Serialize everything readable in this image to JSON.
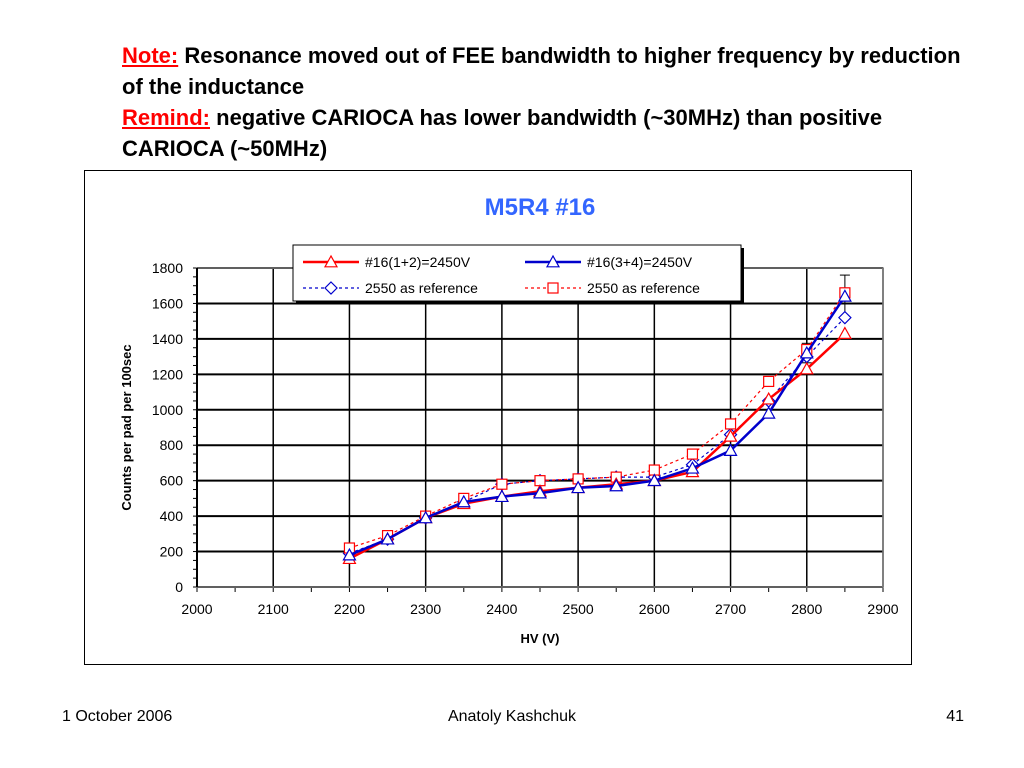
{
  "slide": {
    "note_label": "Note:",
    "note_text": "Resonance moved out of FEE bandwidth to higher frequency by reduction of the inductance",
    "remind_label": "Remind:",
    "remind_text": "negative CARIOCA has lower bandwidth (~30MHz) than positive CARIOCA (~50MHz)",
    "label_color": "#ff0000"
  },
  "footer": {
    "date": "1 October 2006",
    "author": "Anatoly Kashchuk",
    "page": "41"
  },
  "chart_data": {
    "type": "line",
    "title": "M5R4 #16",
    "title_color": "#3366ff",
    "xlabel": "HV (V)",
    "ylabel": "Counts  per pad per 100sec",
    "xlim": [
      2000,
      2900
    ],
    "ylim": [
      0,
      1800
    ],
    "x_ticks": [
      2000,
      2100,
      2200,
      2300,
      2400,
      2500,
      2600,
      2700,
      2800,
      2900
    ],
    "y_ticks": [
      0,
      200,
      400,
      600,
      800,
      1000,
      1200,
      1400,
      1600,
      1800
    ],
    "grid": "major",
    "legend_position": "top-center",
    "series": [
      {
        "name": "#16(1+2)=2450V",
        "color": "#ff0000",
        "line": "solid",
        "marker": "triangle",
        "x": [
          2200,
          2250,
          2300,
          2350,
          2400,
          2450,
          2500,
          2550,
          2600,
          2650,
          2700,
          2750,
          2800,
          2850
        ],
        "y": [
          160,
          270,
          390,
          470,
          510,
          540,
          560,
          580,
          600,
          650,
          850,
          1060,
          1230,
          1430
        ]
      },
      {
        "name": "#16(3+4)=2450V",
        "color": "#0000cc",
        "line": "solid",
        "marker": "triangle",
        "x": [
          2200,
          2250,
          2300,
          2350,
          2400,
          2450,
          2500,
          2550,
          2600,
          2650,
          2700,
          2750,
          2800,
          2850
        ],
        "y": [
          180,
          270,
          390,
          480,
          510,
          530,
          560,
          570,
          600,
          670,
          770,
          980,
          1320,
          1640
        ]
      },
      {
        "name": "2550 as reference",
        "color": "#0000cc",
        "line": "dotted",
        "marker": "diamond",
        "x": [
          2200,
          2250,
          2300,
          2350,
          2400,
          2450,
          2500,
          2550,
          2600,
          2650,
          2700,
          2750,
          2800,
          2850
        ],
        "y": [
          190,
          270,
          390,
          480,
          580,
          600,
          610,
          620,
          620,
          690,
          860,
          1050,
          1300,
          1520
        ]
      },
      {
        "name": "2550 as reference",
        "color": "#ff0000",
        "line": "dotted",
        "marker": "square",
        "x": [
          2200,
          2250,
          2300,
          2350,
          2400,
          2450,
          2500,
          2550,
          2600,
          2650,
          2700,
          2750,
          2800,
          2850
        ],
        "y": [
          220,
          290,
          400,
          500,
          580,
          600,
          610,
          620,
          660,
          750,
          920,
          1160,
          1340,
          1660
        ]
      }
    ]
  }
}
